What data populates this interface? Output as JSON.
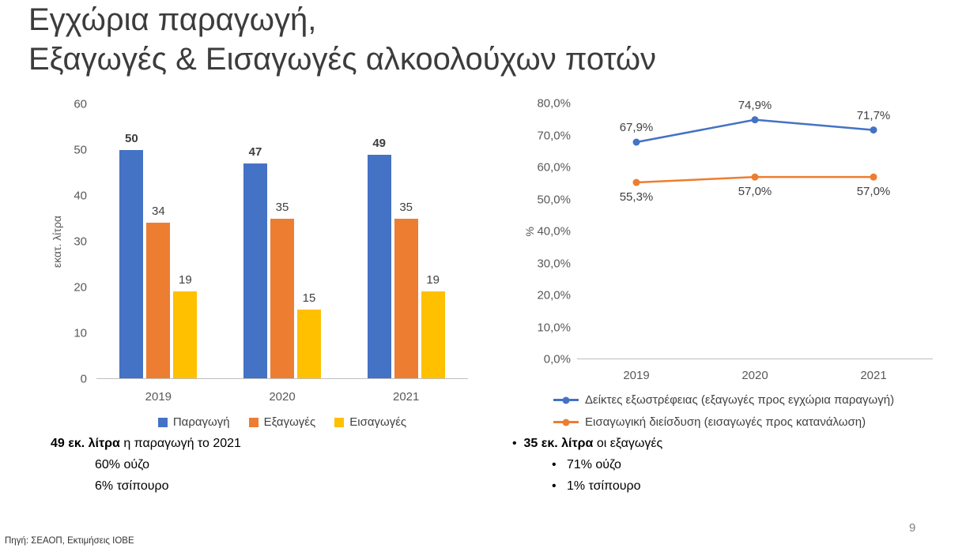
{
  "slide": {
    "title_line1": "Εγχώρια παραγωγή,",
    "title_line2": "Εξαγωγές & Εισαγωγές αλκοολούχων ποτών",
    "source": "Πηγή: ΣΕΑΟΠ, Εκτιμήσεις ΙΟΒΕ",
    "page_number": "9"
  },
  "notes": {
    "left": {
      "headline_bold": "49 εκ. λίτρα",
      "headline_rest": " η παραγωγή το 2021",
      "items": [
        "60% ούζο",
        "6% τσίπουρο"
      ]
    },
    "right": {
      "headline_bold": "35 εκ. λίτρα",
      "headline_rest": " οι εξαγωγές",
      "items": [
        "71% ούζο",
        "1% τσίπουρο"
      ]
    }
  },
  "chart_data": [
    {
      "type": "bar",
      "title": "",
      "categories": [
        "2019",
        "2020",
        "2021"
      ],
      "series": [
        {
          "name": "Παραγωγή",
          "color": "#4472C4",
          "values": [
            50,
            47,
            49
          ],
          "bold_value_labels": true
        },
        {
          "name": "Εξαγωγές",
          "color": "#ED7D31",
          "values": [
            34,
            35,
            35
          ],
          "bold_value_labels": false
        },
        {
          "name": "Εισαγωγές",
          "color": "#FFC000",
          "values": [
            19,
            15,
            19
          ],
          "bold_value_labels": false
        }
      ],
      "xlabel": "",
      "ylabel": "εκατ. λίτρα",
      "ylim": [
        0,
        60
      ],
      "ytick_labels": [
        "0",
        "10",
        "20",
        "30",
        "40",
        "50",
        "60"
      ],
      "grid": false,
      "legend_position": "bottom"
    },
    {
      "type": "line",
      "title": "",
      "categories": [
        "2019",
        "2020",
        "2021"
      ],
      "series": [
        {
          "name": "Δείκτες εξωστρέφειας (εξαγωγές προς εγχώρια παραγωγή)",
          "color": "#4472C4",
          "values": [
            67.9,
            74.9,
            71.7
          ],
          "point_labels": [
            "67,9%",
            "74,9%",
            "71,7%"
          ],
          "label_position": "above"
        },
        {
          "name": "Εισαγωγική διείσδυση (εισαγωγές προς κατανάλωση)",
          "color": "#ED7D31",
          "values": [
            55.3,
            57.0,
            57.0
          ],
          "point_labels": [
            "55,3%",
            "57,0%",
            "57,0%"
          ],
          "label_position": "below"
        }
      ],
      "xlabel": "",
      "ylabel": "%",
      "ylim": [
        0,
        80
      ],
      "ytick_labels": [
        "0,0%",
        "10,0%",
        "20,0%",
        "30,0%",
        "40,0%",
        "50,0%",
        "60,0%",
        "70,0%",
        "80,0%"
      ],
      "grid": false,
      "legend_position": "bottom"
    }
  ]
}
